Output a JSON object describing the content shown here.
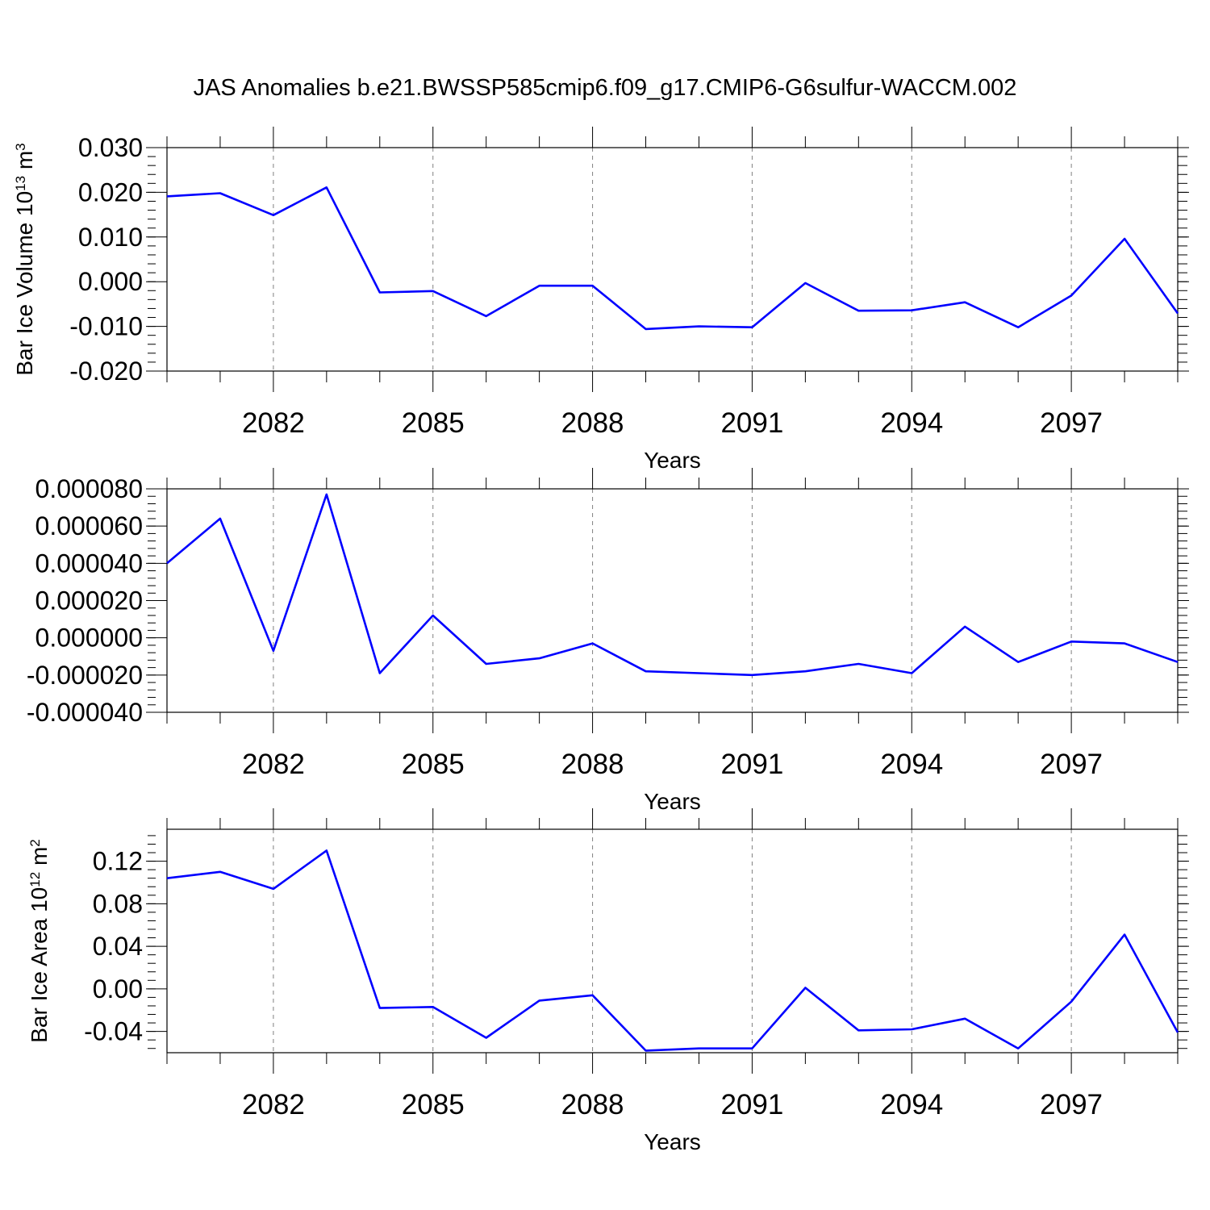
{
  "title": "JAS Anomalies b.e21.BWSSP585cmip6.f09_g17.CMIP6-G6sulfur-WACCM.002",
  "colors": {
    "line": "#0000ff",
    "axis": "#000000",
    "grid": "#808080"
  },
  "chart_data": [
    {
      "type": "line",
      "ylabel": "Bar Ice Volume 10",
      "ylabel_exponent": "13",
      "ylabel_unit": " m",
      "ylabel_unit_exponent": "3",
      "xlabel": "Years",
      "xlim": [
        2080,
        2099
      ],
      "ylim": [
        -0.02,
        0.03
      ],
      "yticks": [
        "0.030",
        "0.020",
        "0.010",
        "0.000",
        "-0.010",
        "-0.020"
      ],
      "xticks": [
        "2082",
        "2085",
        "2088",
        "2091",
        "2094",
        "2097"
      ],
      "x": [
        2080,
        2081,
        2082,
        2083,
        2084,
        2085,
        2086,
        2087,
        2088,
        2089,
        2090,
        2091,
        2092,
        2093,
        2094,
        2095,
        2096,
        2097,
        2098,
        2099
      ],
      "values": [
        0.0191,
        0.0198,
        0.0149,
        0.0211,
        -0.0024,
        -0.0021,
        -0.0077,
        -0.0009,
        -0.0009,
        -0.0106,
        -0.01,
        -0.0102,
        -0.0003,
        -0.0065,
        -0.0064,
        -0.0046,
        -0.0102,
        -0.0031,
        0.0096,
        -0.0071
      ],
      "grid": "dashed vertical lines at labeled years"
    },
    {
      "type": "line",
      "ylabel": "",
      "xlabel": "Years",
      "xlim": [
        2080,
        2099
      ],
      "ylim": [
        -4e-05,
        8e-05
      ],
      "yticks": [
        "0.000080",
        "0.000060",
        "0.000040",
        "0.000020",
        "0.000000",
        "-0.000020",
        "-0.000040"
      ],
      "xticks": [
        "2082",
        "2085",
        "2088",
        "2091",
        "2094",
        "2097"
      ],
      "x": [
        2080,
        2081,
        2082,
        2083,
        2084,
        2085,
        2086,
        2087,
        2088,
        2089,
        2090,
        2091,
        2092,
        2093,
        2094,
        2095,
        2096,
        2097,
        2098,
        2099
      ],
      "values": [
        4e-05,
        6.4e-05,
        -7e-06,
        7.7e-05,
        -1.9e-05,
        1.2e-05,
        -1.4e-05,
        -1.1e-05,
        -3e-06,
        -1.8e-05,
        -1.9e-05,
        -2e-05,
        -1.8e-05,
        -1.4e-05,
        -1.9e-05,
        6e-06,
        -1.3e-05,
        -2e-06,
        -3e-06,
        -1.3e-05
      ],
      "grid": "dashed vertical lines at labeled years"
    },
    {
      "type": "line",
      "ylabel": "Bar Ice Area 10",
      "ylabel_exponent": "12",
      "ylabel_unit": " m",
      "ylabel_unit_exponent": "2",
      "xlabel": "Years",
      "xlim": [
        2080,
        2099
      ],
      "ylim": [
        -0.06,
        0.15
      ],
      "yticks": [
        "0.12",
        "0.08",
        "0.04",
        "0.00",
        "-0.04"
      ],
      "xticks": [
        "2082",
        "2085",
        "2088",
        "2091",
        "2094",
        "2097"
      ],
      "x": [
        2080,
        2081,
        2082,
        2083,
        2084,
        2085,
        2086,
        2087,
        2088,
        2089,
        2090,
        2091,
        2092,
        2093,
        2094,
        2095,
        2096,
        2097,
        2098,
        2099
      ],
      "values": [
        0.104,
        0.11,
        0.094,
        0.13,
        -0.018,
        -0.017,
        -0.046,
        -0.011,
        -0.006,
        -0.058,
        -0.056,
        -0.056,
        0.001,
        -0.039,
        -0.038,
        -0.028,
        -0.056,
        -0.012,
        0.051,
        -0.041
      ],
      "grid": "dashed vertical lines at labeled years"
    }
  ]
}
